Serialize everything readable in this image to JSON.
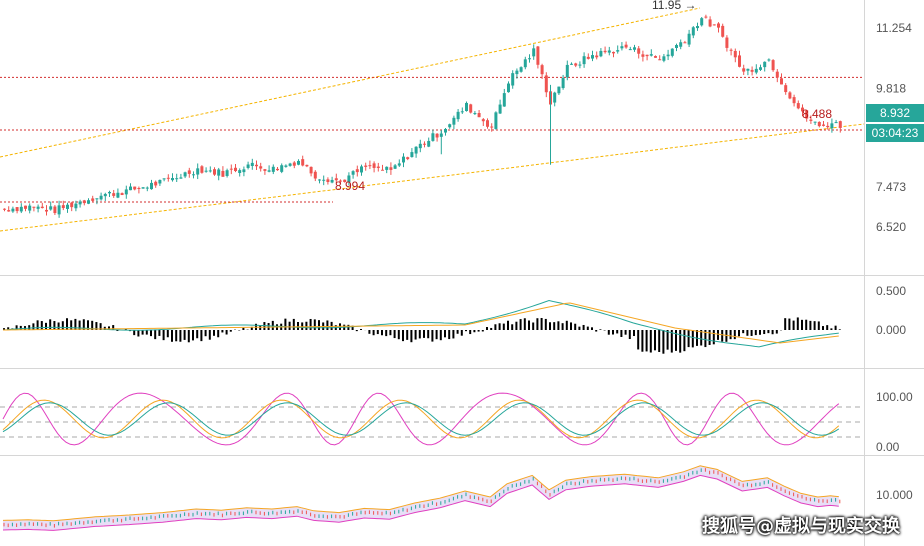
{
  "chart_data": {
    "type": "candlestick",
    "main": {
      "y_ticks": [
        "11.254",
        "9.818",
        "7.473",
        "6.520"
      ],
      "current_price": "8.932",
      "countdown": "03:04:23",
      "annotations": [
        {
          "text": "11.95 →",
          "value": 11.95
        },
        {
          "text": "8.994",
          "value": 8.994
        },
        {
          "text": "8.488",
          "value": 8.488
        }
      ],
      "horizontal_levels": [
        9.818,
        8.994,
        8.488
      ],
      "colors": {
        "up": "#26a69a",
        "down": "#ef5350",
        "level": "#d32f2f",
        "trend": "#f5b400",
        "badge": "#26a69a"
      }
    },
    "macd": {
      "y_ticks": [
        "0.500",
        "0.000"
      ]
    },
    "stoch": {
      "y_ticks": [
        "100.00",
        "0.00"
      ],
      "colors": {
        "k": "#e040c0",
        "d": "#f5a623",
        "j": "#26a69a"
      }
    },
    "volume": {
      "y_ticks": [
        "10.000"
      ]
    }
  },
  "watermark": "搜狐号@虚拟与现实交换"
}
